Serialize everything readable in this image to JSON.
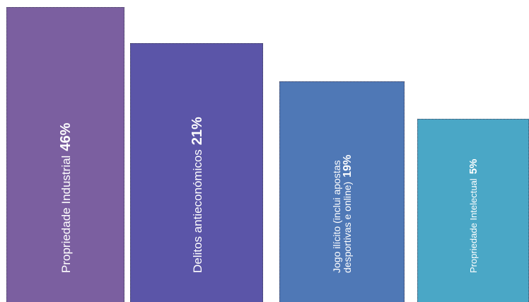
{
  "chart_data": {
    "type": "bar",
    "orientation": "vertical",
    "categories": [
      "Propriedade Industrial",
      "Delitos antieconómicos",
      "Jogo ilícito (inclui apostas desportivas e online)",
      "Propriedade Intelectual"
    ],
    "values": [
      46,
      21,
      19,
      5
    ],
    "value_labels": [
      "46%",
      "21%",
      "19%",
      "5%"
    ],
    "label_lines": [
      [
        "Propriedade Industrial"
      ],
      [
        "Delitos antieconómicos"
      ],
      [
        "Jogo ilícito (inclui apostas",
        "desportivas e online)"
      ],
      [
        "Propriedade Intelectual"
      ]
    ],
    "colors": [
      "#7b5fa0",
      "#5b55a8",
      "#4f78b6",
      "#4aa7c6"
    ],
    "title": "",
    "xlabel": "",
    "ylabel": "",
    "grid": false,
    "legend": "none"
  }
}
